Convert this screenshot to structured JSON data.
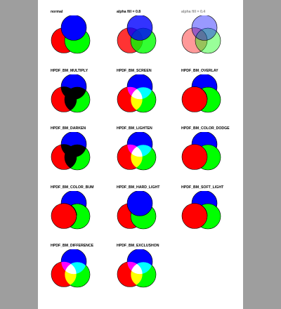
{
  "colors": {
    "red": "#ff0000",
    "green": "#00ff00",
    "blue": "#0000ff",
    "page": "#ffffff",
    "backdrop": "#9e9e9e"
  },
  "cells": [
    {
      "id": "normal",
      "label": "normal",
      "mode": "normal",
      "alpha": 1
    },
    {
      "id": "alpha08",
      "label": "alpha fill = 0.8",
      "mode": "normal",
      "alpha": 0.8
    },
    {
      "id": "alpha04",
      "label": "alpha fill = 0.4",
      "mode": "normal",
      "alpha": 0.4
    },
    {
      "id": "multiply",
      "label": "HPDF_BM_MULTIPLY",
      "mode": "multiply",
      "alpha": 1
    },
    {
      "id": "screen",
      "label": "HPDF_BM_SCREEN",
      "mode": "screen",
      "alpha": 1
    },
    {
      "id": "overlay",
      "label": "HPDF_BM_OVERLAY",
      "mode": "overlay",
      "alpha": 1
    },
    {
      "id": "darken",
      "label": "HPDF_BM_DARKEN",
      "mode": "darken",
      "alpha": 1
    },
    {
      "id": "lighten",
      "label": "HPDF_BM_LIGHTEN",
      "mode": "lighten",
      "alpha": 1
    },
    {
      "id": "colordodge",
      "label": "HPDF_BM_COLOR_DODGE",
      "mode": "color-dodge",
      "alpha": 1
    },
    {
      "id": "colorburn",
      "label": "HPDF_BM_COLOR_BUM",
      "mode": "color-burn",
      "alpha": 1
    },
    {
      "id": "hardlight",
      "label": "HPDF_BM_HARD_LIGHT",
      "mode": "hard-light",
      "alpha": 1
    },
    {
      "id": "softlight",
      "label": "HPDF_BM_SOFT_LIGHT",
      "mode": "soft-light",
      "alpha": 1
    },
    {
      "id": "difference",
      "label": "HPDF_BM_DIFFERENCE",
      "mode": "difference",
      "alpha": 1
    },
    {
      "id": "exclusion",
      "label": "HPDF_BM_EXCLUSHON",
      "mode": "exclusion",
      "alpha": 1
    }
  ]
}
